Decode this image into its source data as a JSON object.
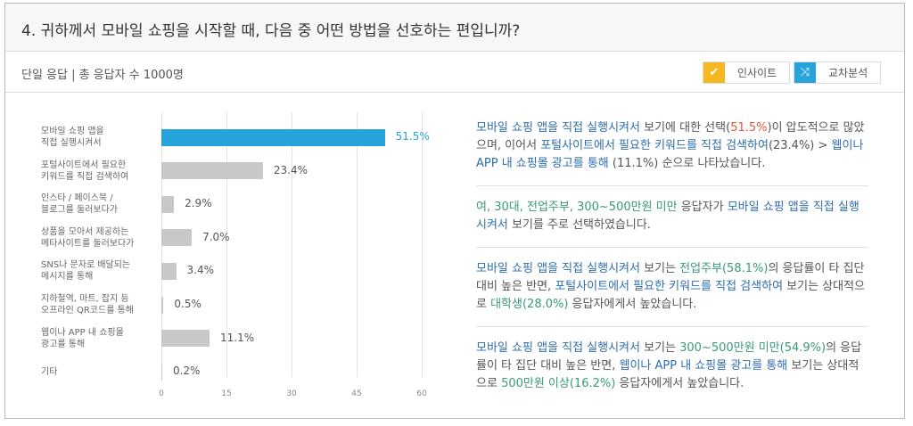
{
  "header": {
    "title": "4. 귀하께서 모바일 쇼핑을 시작할 때, 다음 중 어떤 방법을 선호하는 편입니까?",
    "subtitle": "단일 응답 | 총 응답자 수 1000명"
  },
  "buttons": [
    {
      "label": "인사이트",
      "icon": "check-icon",
      "color": "#f5b820"
    },
    {
      "label": "교차분석",
      "icon": "shuffle-icon",
      "color": "#27a3dc"
    }
  ],
  "chart_data": {
    "type": "bar",
    "orientation": "horizontal",
    "categories": [
      [
        "모바일 쇼핑 앱을",
        "직접 실행시켜서"
      ],
      [
        "포털사이트에서 필요한",
        "키워드를 직접 검색하여"
      ],
      [
        "인스타 / 페이스북 /",
        "블로그를 둘러보다가"
      ],
      [
        "상품을 모아서 제공하는",
        "메타사이트를 둘러보다가"
      ],
      [
        "SNS나 문자로 배달되는",
        "메시지를 통해"
      ],
      [
        "지하철역, 마트, 잡지 등",
        "오프라인 QR코드를 통해"
      ],
      [
        "웹이나 APP 내 쇼핑몰",
        "광고를 통해"
      ],
      [
        "기타"
      ]
    ],
    "values": [
      51.5,
      23.4,
      2.9,
      7.0,
      3.4,
      0.5,
      11.1,
      0.2
    ],
    "labels": [
      "51.5%",
      "23.4%",
      "2.9%",
      "7.0%",
      "3.4%",
      "0.5%",
      "11.1%",
      "0.2%"
    ],
    "xlim": [
      0,
      60
    ],
    "ticks": [
      "0",
      "15",
      "30",
      "45",
      "60"
    ],
    "grid": true,
    "highlight_color": "#27a3dc",
    "bar_color": "#c8c8c8"
  },
  "insights": [
    [
      {
        "t": "모바일 쇼핑 앱을 직접 실행시켜서",
        "c": "blue"
      },
      {
        "t": " 보기에 대한 선택(",
        "c": "gray"
      },
      {
        "t": "51.5%",
        "c": "red"
      },
      {
        "t": ")이 압도적으로 많았으며, 이어서 ",
        "c": "gray"
      },
      {
        "t": "포털사이트에서 필요한 키워드를 직접 검색하여",
        "c": "blue"
      },
      {
        "t": "(23.4%) > ",
        "c": "gray"
      },
      {
        "t": "웹이나 APP 내 쇼핑몰 광고를 통해",
        "c": "blue"
      },
      {
        "t": " (11.1%) 순으로 나타났습니다.",
        "c": "gray"
      }
    ],
    [
      {
        "t": "여, 30대, 전업주부, 300~500만원 미만",
        "c": "green"
      },
      {
        "t": " 응답자가 ",
        "c": "gray"
      },
      {
        "t": "모바일 쇼핑 앱을 직접 실행시켜서",
        "c": "blue"
      },
      {
        "t": " 보기를 주로 선택하였습니다.",
        "c": "gray"
      }
    ],
    [
      {
        "t": "모바일 쇼핑 앱을 직접 실행시켜서",
        "c": "blue"
      },
      {
        "t": " 보기는 ",
        "c": "gray"
      },
      {
        "t": "전업주부(58.1%)",
        "c": "green"
      },
      {
        "t": "의 응답률이 타 집단 대비 높은 반면, ",
        "c": "gray"
      },
      {
        "t": "포털사이트에서 필요한 키워드를 직접 검색하여",
        "c": "blue"
      },
      {
        "t": " 보기는 상대적으로 ",
        "c": "gray"
      },
      {
        "t": "대학생(28.0%)",
        "c": "green"
      },
      {
        "t": " 응답자에게서 높았습니다.",
        "c": "gray"
      }
    ],
    [
      {
        "t": "모바일 쇼핑 앱을 직접 실행시켜서",
        "c": "blue"
      },
      {
        "t": " 보기는 ",
        "c": "gray"
      },
      {
        "t": "300~500만원 미만(54.9%)",
        "c": "green"
      },
      {
        "t": "의 응답률이 타 집단 대비 높은 반면, ",
        "c": "gray"
      },
      {
        "t": "웹이나 APP 내 쇼핑몰 광고를 통해",
        "c": "blue"
      },
      {
        "t": " 보기는 상대적으로 ",
        "c": "gray"
      },
      {
        "t": "500만원 이상(16.2%)",
        "c": "green"
      },
      {
        "t": " 응답자에게서 높았습니다.",
        "c": "gray"
      }
    ]
  ]
}
